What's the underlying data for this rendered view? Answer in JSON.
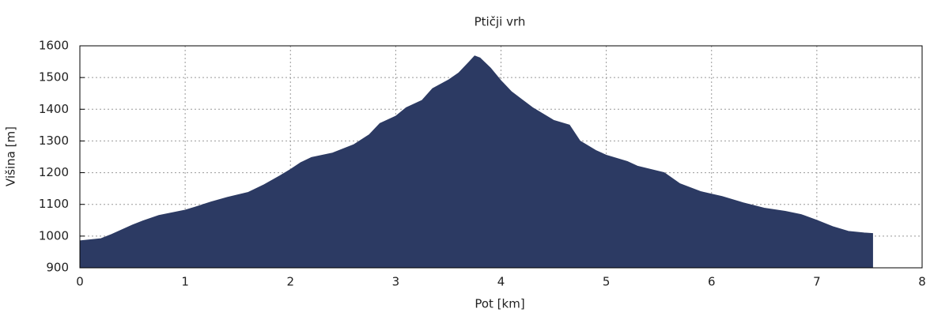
{
  "chart_data": {
    "type": "area",
    "title": "Ptičji vrh",
    "x_label": "Pot [km]",
    "y_label": "Višina [m]",
    "x": [
      0,
      0.2,
      0.3,
      0.4,
      0.5,
      0.6,
      0.75,
      1.0,
      1.1,
      1.25,
      1.4,
      1.6,
      1.75,
      1.9,
      2.0,
      2.1,
      2.2,
      2.4,
      2.6,
      2.75,
      2.85,
      3.0,
      3.1,
      3.25,
      3.35,
      3.5,
      3.6,
      3.7,
      3.75,
      3.8,
      3.9,
      4.0,
      4.1,
      4.2,
      4.3,
      4.4,
      4.5,
      4.65,
      4.75,
      4.9,
      5.0,
      5.2,
      5.3,
      5.55,
      5.7,
      5.9,
      6.1,
      6.3,
      6.5,
      6.7,
      6.85,
      7.0,
      7.15,
      7.3,
      7.45,
      7.53
    ],
    "values": [
      985,
      992,
      1005,
      1020,
      1035,
      1048,
      1065,
      1082,
      1092,
      1108,
      1122,
      1138,
      1162,
      1190,
      1210,
      1232,
      1248,
      1262,
      1288,
      1320,
      1355,
      1378,
      1405,
      1428,
      1465,
      1492,
      1515,
      1550,
      1568,
      1562,
      1530,
      1490,
      1455,
      1430,
      1405,
      1385,
      1365,
      1350,
      1300,
      1270,
      1255,
      1235,
      1220,
      1200,
      1165,
      1140,
      1125,
      1105,
      1088,
      1078,
      1068,
      1050,
      1030,
      1015,
      1010,
      1008
    ],
    "color": "#2c3a63",
    "xlim": [
      0,
      8
    ],
    "xticks": [
      0,
      1,
      2,
      3,
      4,
      5,
      6,
      7,
      8
    ],
    "ylim": [
      900,
      1600
    ],
    "yticks": [
      900,
      1000,
      1100,
      1200,
      1300,
      1400,
      1500,
      1600
    ],
    "grid": true
  }
}
